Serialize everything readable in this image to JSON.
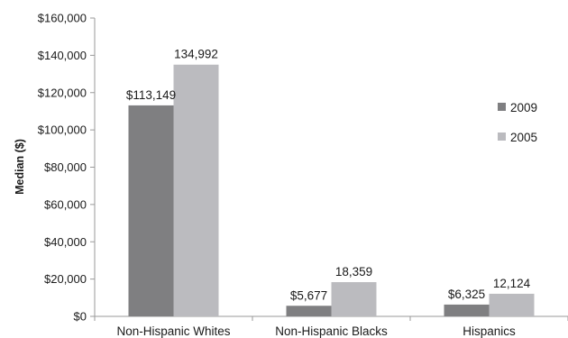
{
  "chart_data": {
    "type": "bar",
    "ylabel": "Median ($)",
    "ylim": [
      0,
      160000
    ],
    "yticks": [
      0,
      20000,
      40000,
      60000,
      80000,
      100000,
      120000,
      140000,
      160000
    ],
    "ytick_labels": [
      "$0",
      "$20,000",
      "$40,000",
      "$60,000",
      "$80,000",
      "$100,000",
      "$120,000",
      "$140,000",
      "$160,000"
    ],
    "categories": [
      "Non-Hispanic Whites",
      "Non-Hispanic Blacks",
      "Hispanics"
    ],
    "series": [
      {
        "name": "2009",
        "color": "#7f7f81",
        "values": [
          113149,
          5677,
          6325
        ],
        "labels": [
          "$113,149",
          "$5,677",
          "$6,325"
        ]
      },
      {
        "name": "2005",
        "color": "#bbbbbf",
        "values": [
          134992,
          18359,
          12124
        ],
        "labels": [
          "134,992",
          "18,359",
          "12,124"
        ]
      }
    ],
    "grid": false,
    "legend_position": "right"
  }
}
